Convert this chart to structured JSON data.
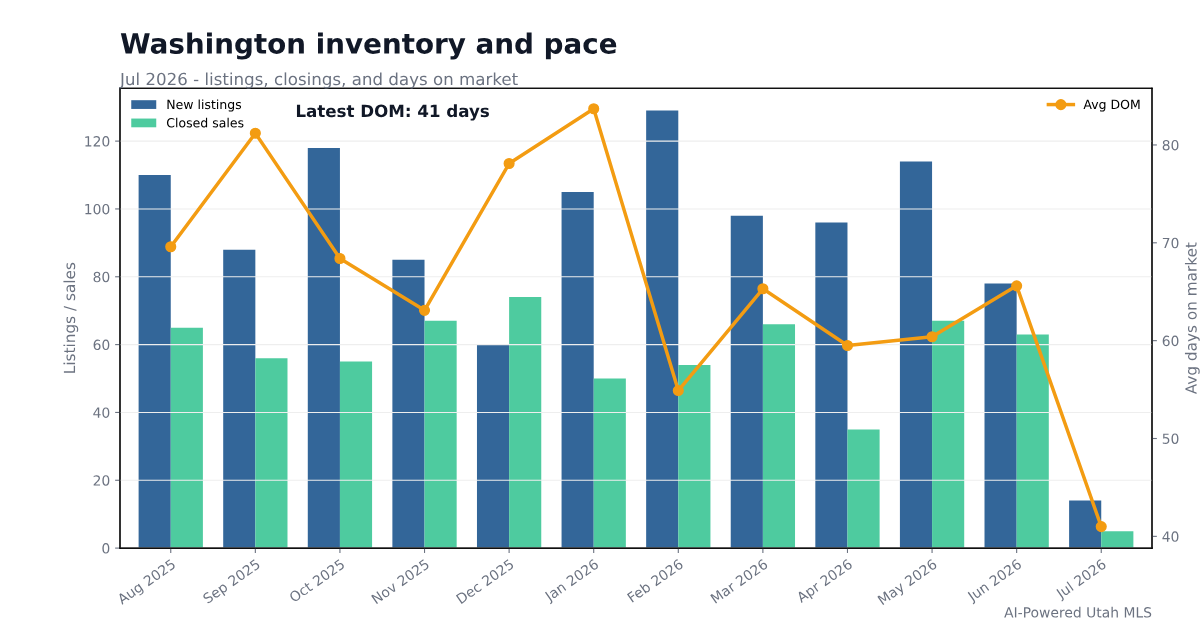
{
  "chart_data": {
    "type": "bar",
    "title": "Washington inventory and pace",
    "subtitle": "Jul 2026 - listings, closings, and days on market",
    "ylabel": "Listings / sales",
    "y2label": "Avg days on market",
    "categories": [
      "Aug 2025",
      "Sep 2025",
      "Oct 2025",
      "Nov 2025",
      "Dec 2025",
      "Jan 2026",
      "Feb 2026",
      "Mar 2026",
      "Apr 2026",
      "May 2026",
      "Jun 2026",
      "Jul 2026"
    ],
    "series": [
      {
        "name": "New listings",
        "color": "#336699",
        "values": [
          110,
          88,
          118,
          85,
          60,
          105,
          129,
          98,
          96,
          114,
          78,
          14
        ]
      },
      {
        "name": "Closed sales",
        "color": "#4ecb9f",
        "values": [
          65,
          56,
          55,
          67,
          74,
          50,
          54,
          66,
          35,
          67,
          63,
          5
        ]
      },
      {
        "name": "Avg DOM",
        "color": "#f39c12",
        "type": "line",
        "axis": "y2",
        "marker": "circle",
        "values": [
          69.6,
          81.2,
          68.4,
          63.1,
          78.1,
          83.7,
          54.9,
          65.3,
          59.5,
          60.4,
          65.6,
          41
        ]
      }
    ],
    "ylim": [
      0,
      135.6
    ],
    "yticks": [
      0,
      20,
      40,
      60,
      80,
      100,
      120
    ],
    "y2lim": [
      38.8,
      85.8
    ],
    "y2ticks": [
      40,
      50,
      60,
      70,
      80
    ],
    "grid": "y",
    "legend": "top left",
    "annotations": [
      "Latest DOM: 41 days",
      "AI-Powered Utah MLS"
    ]
  }
}
